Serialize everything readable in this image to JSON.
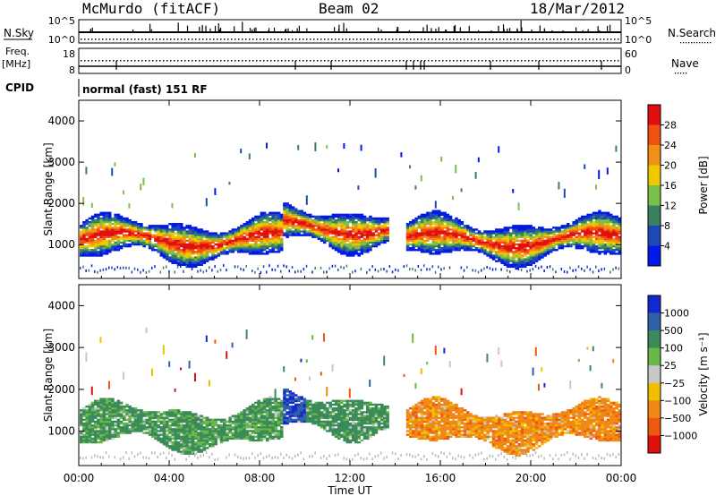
{
  "header": {
    "station": "McMurdo (fitACF)",
    "beam": "Beam 02",
    "date": "18/Mar/2012"
  },
  "top_panel": {
    "left_label_sky": "N.Sky",
    "left_label_freq": "Freq.",
    "left_label_freq_unit": "[MHz]",
    "left_label_cpid": "CPID",
    "right_label_search": "N.Search",
    "right_label_nave": "Nave",
    "noise_ticks": [
      "10^5",
      "10^0"
    ],
    "freq_ticks": [
      "18",
      "8"
    ],
    "nave_ticks": [
      "60",
      "0"
    ],
    "cpid_text": "normal (fast) 151 RF"
  },
  "chart_data": [
    {
      "type": "heatmap",
      "name": "power",
      "xlabel": "",
      "ylabel": "Slant Range [km]",
      "x_ticks": [
        "00:00",
        "04:00",
        "08:00",
        "12:00",
        "16:00",
        "20:00",
        "00:00"
      ],
      "y_ticks": [
        1000,
        2000,
        3000,
        4000
      ],
      "xlim_hours": [
        0,
        24
      ],
      "ylim_km": [
        180,
        4500
      ],
      "colorbar_label": "Power [dB]",
      "colorbar_ticks": [
        4,
        8,
        12,
        16,
        20,
        24,
        28
      ],
      "colorbar_range": [
        0,
        32
      ],
      "colors": [
        "#0018e8",
        "#1e48b8",
        "#3a8060",
        "#78c048",
        "#f0c800",
        "#f09018",
        "#f05010",
        "#e01010"
      ]
    },
    {
      "type": "heatmap",
      "name": "velocity",
      "xlabel": "Time UT",
      "ylabel": "Slant Range [km]",
      "x_ticks": [
        "00:00",
        "04:00",
        "08:00",
        "12:00",
        "16:00",
        "20:00",
        "00:00"
      ],
      "y_ticks": [
        1000,
        2000,
        3000,
        4000
      ],
      "xlim_hours": [
        0,
        24
      ],
      "ylim_km": [
        180,
        4500
      ],
      "colorbar_label": "Velocity [m s⁻¹]",
      "colorbar_ticks": [
        "1000",
        "500",
        "100",
        "25",
        "−25",
        "−100",
        "−500",
        "−1000"
      ],
      "colors": [
        "#1428d0",
        "#3060a8",
        "#3a8a5a",
        "#6ab848",
        "#c8c8c8",
        "#f0c000",
        "#f08818",
        "#f05810",
        "#e01010"
      ]
    }
  ]
}
